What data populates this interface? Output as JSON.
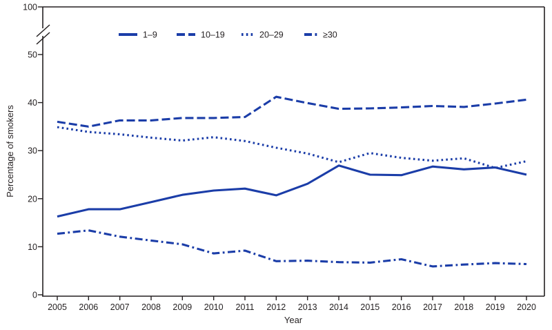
{
  "colors": {
    "line_blue": "#1b3da8",
    "axis": "#231f20",
    "text": "#231f20",
    "background": "#ffffff"
  },
  "chart_data": {
    "type": "line",
    "title": "",
    "xlabel": "Year",
    "ylabel": "Percentage of smokers",
    "x": [
      2005,
      2006,
      2007,
      2008,
      2009,
      2010,
      2011,
      2012,
      2013,
      2014,
      2015,
      2016,
      2017,
      2018,
      2019,
      2020
    ],
    "y_axis": {
      "ticks_drawn": [
        0,
        10,
        20,
        30,
        40,
        50
      ],
      "top_tick": 100,
      "axis_break_between": [
        50,
        100
      ],
      "ylim_drawn": [
        0,
        50
      ]
    },
    "grid": "off",
    "legend_position": "top-center-inside",
    "series": [
      {
        "name": "1–9",
        "style": "solid",
        "values": [
          16.3,
          17.8,
          17.8,
          19.3,
          20.8,
          21.7,
          22.1,
          20.7,
          23.1,
          26.9,
          25.0,
          24.9,
          26.7,
          26.1,
          26.5,
          25.0
        ]
      },
      {
        "name": "10–19",
        "style": "dashed",
        "values": [
          36.0,
          35.0,
          36.3,
          36.3,
          36.8,
          36.8,
          37.0,
          41.2,
          39.9,
          38.7,
          38.8,
          39.0,
          39.3,
          39.1,
          39.8,
          40.6
        ]
      },
      {
        "name": "20–29",
        "style": "dotted",
        "values": [
          34.9,
          33.9,
          33.4,
          32.7,
          32.1,
          32.8,
          32.0,
          30.6,
          29.4,
          27.6,
          29.5,
          28.5,
          27.9,
          28.4,
          26.4,
          27.8
        ]
      },
      {
        "name": "≥30",
        "style": "dashdot",
        "values": [
          12.7,
          13.4,
          12.1,
          11.3,
          10.5,
          8.6,
          9.2,
          7.0,
          7.1,
          6.8,
          6.7,
          7.4,
          5.9,
          6.3,
          6.6,
          6.4
        ]
      }
    ]
  }
}
